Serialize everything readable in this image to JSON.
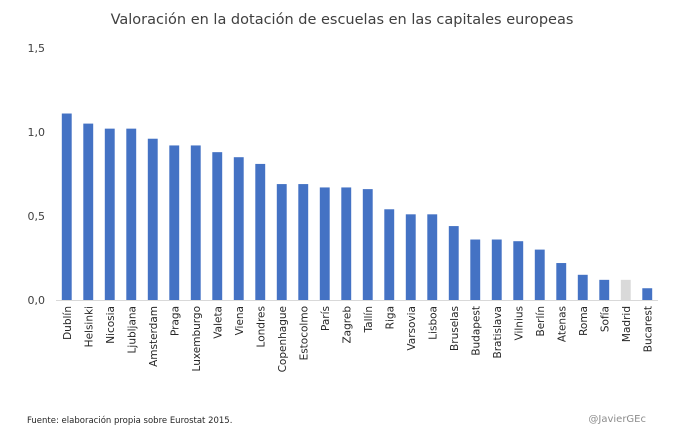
{
  "chart_data": {
    "type": "bar",
    "title": "Valoración en la dotación de escuelas en las capitales europeas",
    "xlabel": "",
    "ylabel": "",
    "ylim": [
      0,
      1.5
    ],
    "yticks": [
      "0,0",
      "0,5",
      "1,0",
      "1,5"
    ],
    "ytick_values": [
      0,
      0.5,
      1.0,
      1.5
    ],
    "categories": [
      "Dublín",
      "Helsinki",
      "Nicosia",
      "Ljubljana",
      "Amsterdam",
      "Praga",
      "Luxemburgo",
      "Valeta",
      "Viena",
      "Londres",
      "Copenhague",
      "Estocolmo",
      "París",
      "Zagreb",
      "Tallín",
      "Riga",
      "Varsovia",
      "Lisboa",
      "Bruselas",
      "Budapest",
      "Bratislava",
      "Vilnius",
      "Berlín",
      "Atenas",
      "Roma",
      "Sofía",
      "Madrid",
      "Bucarest"
    ],
    "values": [
      1.11,
      1.05,
      1.02,
      1.02,
      0.96,
      0.92,
      0.92,
      0.88,
      0.85,
      0.81,
      0.69,
      0.69,
      0.67,
      0.67,
      0.66,
      0.54,
      0.51,
      0.51,
      0.44,
      0.36,
      0.36,
      0.35,
      0.3,
      0.22,
      0.15,
      0.12,
      0.12,
      0.07
    ],
    "highlight": "Madrid",
    "colors": {
      "bar": "#4472c4",
      "highlight": "#d9d9d9",
      "axis": "#d9d9d9",
      "text": "#404040"
    }
  },
  "footer": {
    "source": "Fuente: elaboración propia sobre Eurostat 2015.",
    "credit": "@JavierGEc"
  }
}
